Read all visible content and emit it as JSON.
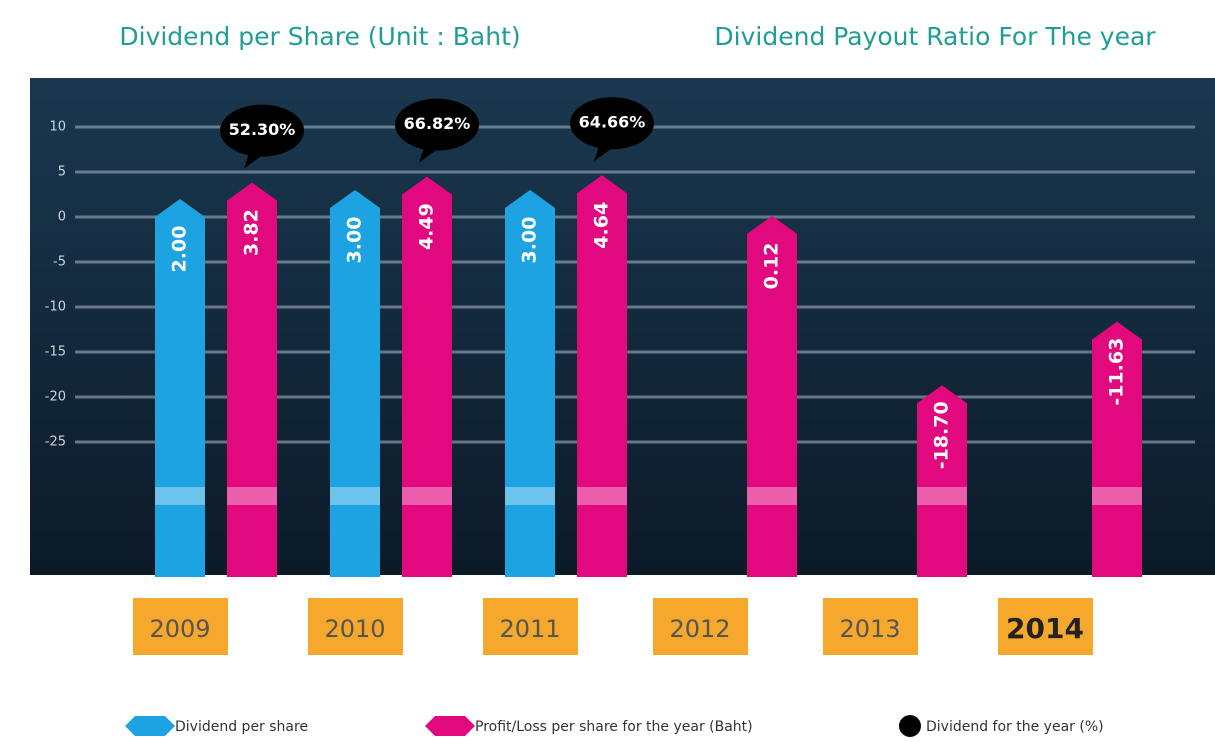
{
  "chart_data": {
    "type": "bar",
    "title": "Dividend per Share (Unit : Baht)",
    "subtitle": "Dividend Payout Ratio For The year",
    "categories": [
      "2009",
      "2010",
      "2011",
      "2012",
      "2013",
      "2014"
    ],
    "series": [
      {
        "name": "Dividend per share",
        "color": "#1ea3e2",
        "values": [
          2,
          3,
          3,
          null,
          null,
          null
        ],
        "value_labels": [
          "2.00",
          "3.00",
          "3.00",
          null,
          null,
          null
        ]
      },
      {
        "name": "Profit/Loss per share for the year (Baht)",
        "color": "#e2097e",
        "values": [
          3.82,
          4.49,
          4.64,
          0.12,
          -18.7,
          -11.63
        ],
        "value_labels": [
          "3.82",
          "4.49",
          "4.64",
          "0.12",
          "-18.70",
          "-11.63"
        ]
      },
      {
        "name": "Dividend for the year (%)",
        "color": "#000000",
        "values": [
          52.3,
          66.82,
          64.66,
          null,
          null,
          null
        ],
        "value_labels": [
          "52.30%",
          "66.82%",
          "64.66%",
          null,
          null,
          null
        ]
      }
    ],
    "ylim": [
      -40,
      10
    ],
    "yticks": [
      10,
      5,
      0,
      -5,
      -10,
      -15,
      -20,
      -25
    ],
    "grid": true
  }
}
